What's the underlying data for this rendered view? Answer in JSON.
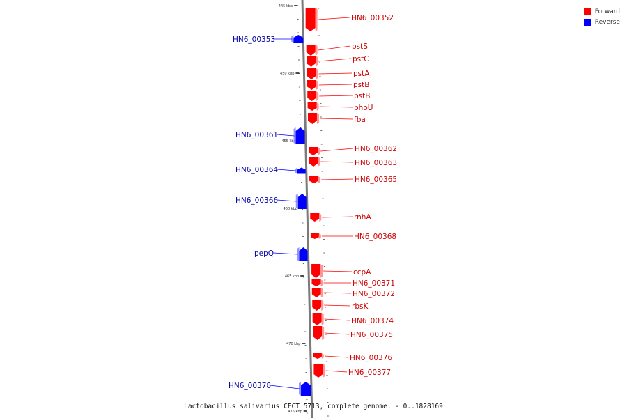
{
  "legend": {
    "forward_label": "Forward",
    "reverse_label": "Reverse",
    "forward_color": "#ff0000",
    "reverse_color": "#0000ff"
  },
  "caption": "Lactobacillus salivarius CECT 5713, complete genome. - 0..1828169",
  "scale_labels": [
    "445 kbp",
    "450 kbp",
    "455 kbp",
    "460 kbp",
    "465 kbp",
    "470 kbp",
    "475 kbp"
  ],
  "genes": [
    {
      "name": "HN6_00352",
      "strand": "forward"
    },
    {
      "name": "HN6_00353",
      "strand": "reverse"
    },
    {
      "name": "pstS",
      "strand": "forward"
    },
    {
      "name": "pstC",
      "strand": "forward"
    },
    {
      "name": "pstA",
      "strand": "forward"
    },
    {
      "name": "pstB",
      "strand": "forward"
    },
    {
      "name": "pstB",
      "strand": "forward"
    },
    {
      "name": "phoU",
      "strand": "forward"
    },
    {
      "name": "fba",
      "strand": "forward"
    },
    {
      "name": "HN6_00361",
      "strand": "reverse"
    },
    {
      "name": "HN6_00362",
      "strand": "forward"
    },
    {
      "name": "HN6_00363",
      "strand": "forward"
    },
    {
      "name": "HN6_00364",
      "strand": "reverse"
    },
    {
      "name": "HN6_00365",
      "strand": "forward"
    },
    {
      "name": "HN6_00366",
      "strand": "reverse"
    },
    {
      "name": "rnhA",
      "strand": "forward"
    },
    {
      "name": "HN6_00368",
      "strand": "forward"
    },
    {
      "name": "pepQ",
      "strand": "reverse"
    },
    {
      "name": "ccpA",
      "strand": "forward"
    },
    {
      "name": "HN6_00371",
      "strand": "forward"
    },
    {
      "name": "HN6_00372",
      "strand": "forward"
    },
    {
      "name": "rbsK",
      "strand": "forward"
    },
    {
      "name": "HN6_00374",
      "strand": "forward"
    },
    {
      "name": "HN6_00375",
      "strand": "forward"
    },
    {
      "name": "HN6_00376",
      "strand": "forward"
    },
    {
      "name": "HN6_00377",
      "strand": "forward"
    },
    {
      "name": "HN6_00378",
      "strand": "reverse"
    }
  ]
}
